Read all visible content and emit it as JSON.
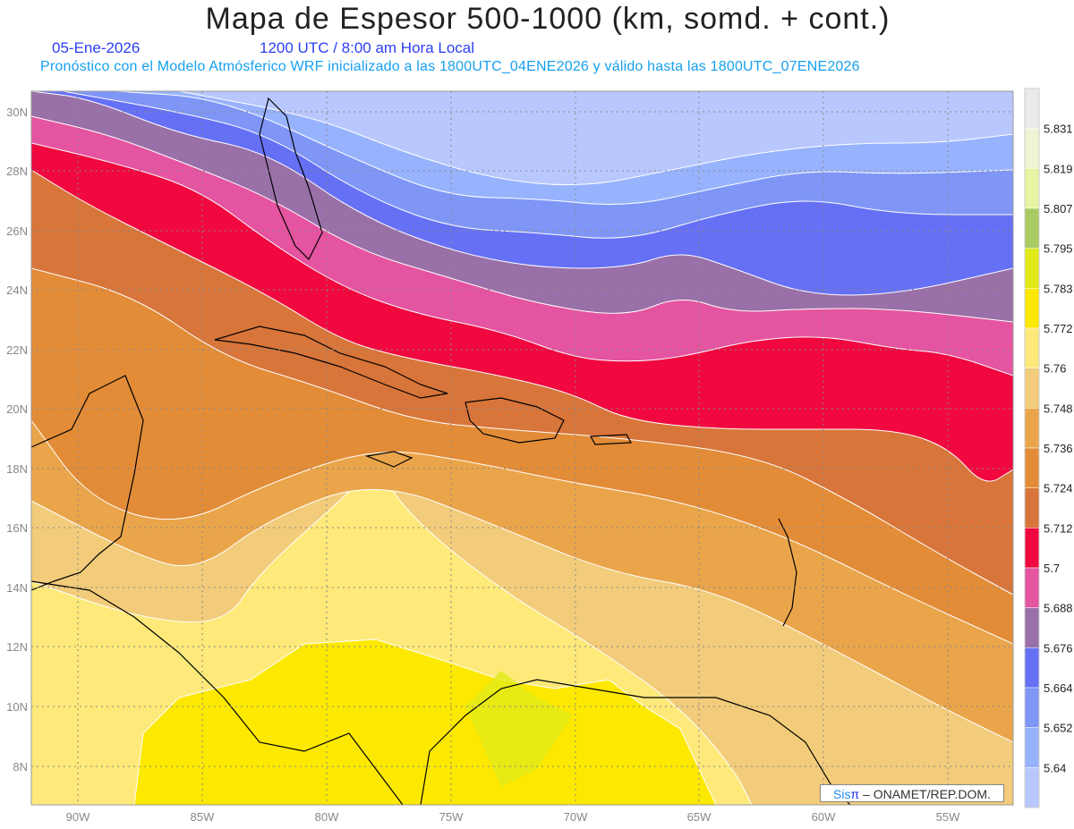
{
  "header": {
    "title": "Mapa de Espesor 500-1000 (km, somd. + cont.)",
    "date": "05-Ene-2026",
    "time": "1200 UTC / 8:00 am Hora Local",
    "subtitle": "Pronóstico con el Modelo Atmósferico WRF inicializado a las 1800UTC_04ENE2026 y válido hasta las  1800UTC_07ENE2026"
  },
  "map": {
    "lon_labels": [
      "90W",
      "85W",
      "80W",
      "75W",
      "70W",
      "65W",
      "60W",
      "55W"
    ],
    "lat_labels": [
      "30N",
      "28N",
      "26N",
      "24N",
      "22N",
      "20N",
      "18N",
      "16N",
      "14N",
      "12N",
      "10N",
      "8N"
    ],
    "variable": "Espesor 500-1000 hPa (km)"
  },
  "colorbar": {
    "labels": [
      "5.831",
      "5.819",
      "5.807",
      "5.795",
      "5.783",
      "5.772",
      "5.76",
      "5.748",
      "5.736",
      "5.724",
      "5.712",
      "5.7",
      "5.688",
      "5.676",
      "5.664",
      "5.652",
      "5.64"
    ],
    "colors": [
      "#ebebeb",
      "#eef5d4",
      "#e6f5a2",
      "#a9cb62",
      "#e1ea18",
      "#fde900",
      "#fee97a",
      "#f2cc7a",
      "#eaa54a",
      "#e38c38",
      "#d8753a",
      "#f0083f",
      "#e554a0",
      "#9a70a8",
      "#6670f5",
      "#7f96f7",
      "#98b3fd",
      "#b8c8fe"
    ]
  },
  "credit": {
    "brand_a": "Sis",
    "brand_b": "π",
    "text": " – ONAMET/REP.DOM."
  }
}
